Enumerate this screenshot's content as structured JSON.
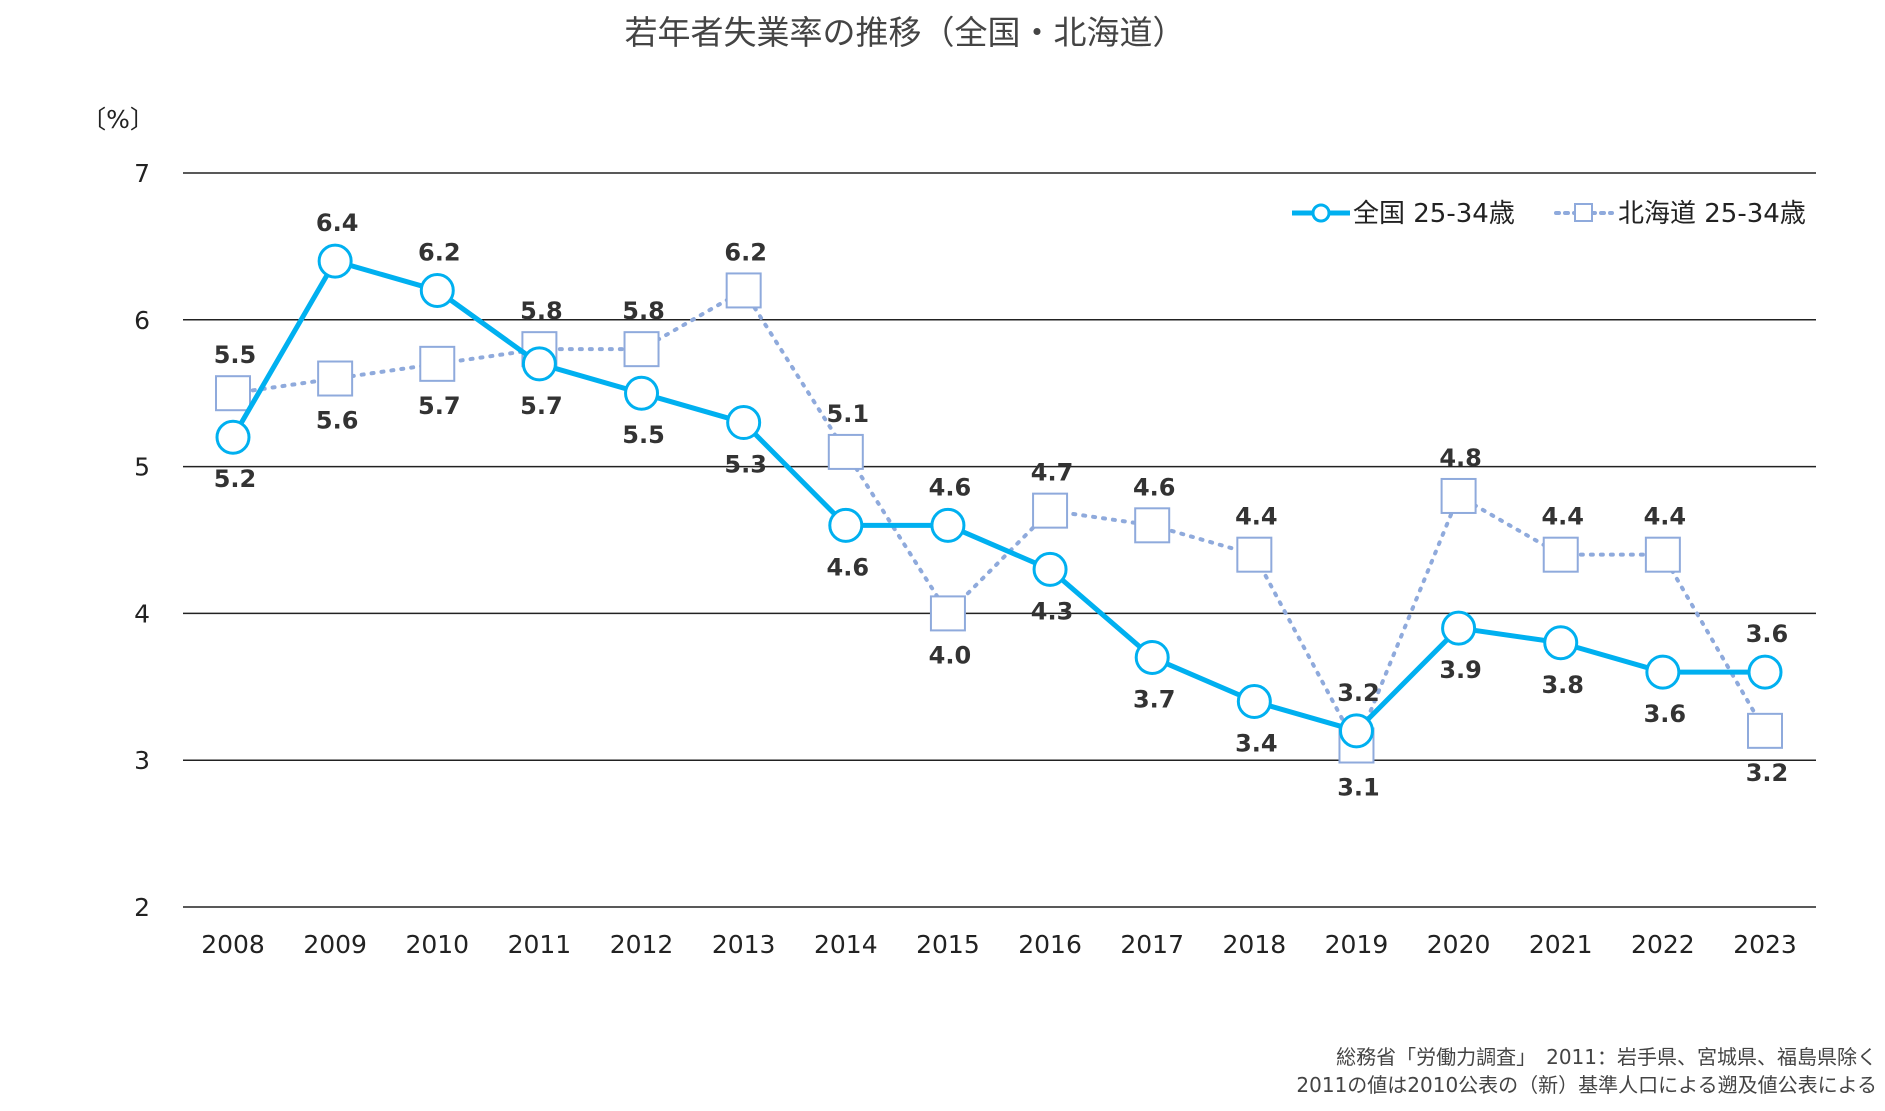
{
  "chart_data": {
    "type": "line",
    "title": "若年者失業率の推移（全国・北海道）",
    "ylabel": "〔%〕",
    "xlabel": "",
    "ylim": [
      2,
      7
    ],
    "yticks": [
      "2",
      "3",
      "4",
      "5",
      "6",
      "7"
    ],
    "grid": true,
    "legend_position": "top-right",
    "categories": [
      "2008",
      "2009",
      "2010",
      "2011",
      "2012",
      "2013",
      "2014",
      "2015",
      "2016",
      "2017",
      "2018",
      "2019",
      "2020",
      "2021",
      "2022",
      "2023"
    ],
    "series": [
      {
        "name": "全国 25-34歳",
        "color": "#00b0f0",
        "style": "solid-circle",
        "values": [
          5.2,
          6.4,
          6.2,
          5.7,
          5.5,
          5.3,
          4.6,
          4.6,
          4.3,
          3.7,
          3.4,
          3.2,
          3.9,
          3.8,
          3.6,
          3.6
        ],
        "labels": [
          "5.2",
          "6.4",
          "6.2",
          "5.7",
          "5.5",
          "5.3",
          "4.6",
          "4.6",
          "4.3",
          "3.7",
          "3.4",
          "3.2",
          "3.9",
          "3.8",
          "3.6",
          "3.6"
        ]
      },
      {
        "name": "北海道 25-34歳",
        "color": "#8faadc",
        "style": "dotted-square",
        "values": [
          5.5,
          5.6,
          5.7,
          5.8,
          5.8,
          6.2,
          5.1,
          4.0,
          4.7,
          4.6,
          4.4,
          3.1,
          4.8,
          4.4,
          4.4,
          3.2
        ],
        "labels": [
          "5.5",
          "5.6",
          "5.7",
          "5.8",
          "5.8",
          "6.2",
          "5.1",
          "4.0",
          "4.7",
          "4.6",
          "4.4",
          "3.1",
          "4.8",
          "4.4",
          "4.4",
          "3.2"
        ]
      }
    ],
    "notes": [
      "総務省「労働力調査」　2011：岩手県、宮城県、福島県除く",
      "2011の値は2010公表の（新）基準人口による遡及値公表による"
    ]
  }
}
